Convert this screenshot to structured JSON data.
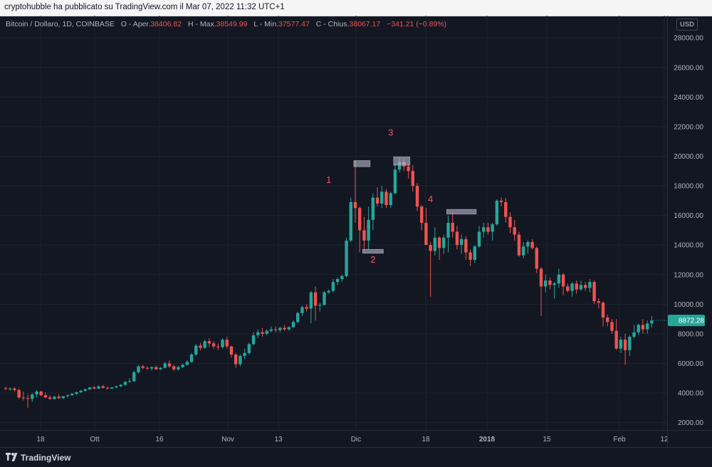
{
  "header": {
    "publisher_line": "cryptohubble ha pubblicato su TradingView.com il Mar 07, 2022 11:32 UTC+1"
  },
  "legend": {
    "symbol": "Bitcoin / Dollaro, 1D, COINBASE",
    "open_label": "O - Aper.",
    "open_value": "38406.82",
    "high_label": "H - Max.",
    "high_value": "38549.99",
    "low_label": "L - Min.",
    "low_value": "37577.47",
    "close_label": "C - Chius.",
    "close_value": "38067.17",
    "change": "−341.21 (−0.89%)"
  },
  "currency_button": "USD",
  "footer": {
    "brand": "TradingView"
  },
  "colors": {
    "up": "#26a69a",
    "down": "#ef5350",
    "background": "#131722",
    "annotation": "#f7525f",
    "price_tag": "#26a69a"
  },
  "chart_data": {
    "type": "candlestick",
    "y_axis": {
      "min": 1500,
      "max": 29500,
      "ticks": [
        "28000.00",
        "26000.00",
        "24000.00",
        "22000.00",
        "20000.00",
        "18000.00",
        "16000.00",
        "14000.00",
        "12000.00",
        "10000.00",
        "8000.00",
        "6000.00",
        "4000.00",
        "2000.00"
      ]
    },
    "x_axis": {
      "tick_labels": [
        "18",
        "Ott",
        "16",
        "Nov",
        "13",
        "Dic",
        "18",
        "2018",
        "15",
        "Feb",
        "12"
      ]
    },
    "last_price_label": "8872.28",
    "annotations": [
      "1",
      "2",
      "3",
      "4"
    ],
    "series": [
      {
        "o": 4320,
        "h": 4430,
        "l": 4200,
        "c": 4280
      },
      {
        "o": 4280,
        "h": 4380,
        "l": 4150,
        "c": 4300
      },
      {
        "o": 4300,
        "h": 4400,
        "l": 4100,
        "c": 4200
      },
      {
        "o": 4200,
        "h": 4300,
        "l": 3600,
        "c": 3700
      },
      {
        "o": 3700,
        "h": 4100,
        "l": 3500,
        "c": 3650
      },
      {
        "o": 3650,
        "h": 3900,
        "l": 3000,
        "c": 3600
      },
      {
        "o": 3600,
        "h": 4000,
        "l": 3400,
        "c": 3900
      },
      {
        "o": 3900,
        "h": 4200,
        "l": 3700,
        "c": 4100
      },
      {
        "o": 4100,
        "h": 4150,
        "l": 3800,
        "c": 3850
      },
      {
        "o": 3850,
        "h": 4050,
        "l": 3650,
        "c": 3700
      },
      {
        "o": 3700,
        "h": 3850,
        "l": 3550,
        "c": 3600
      },
      {
        "o": 3600,
        "h": 3800,
        "l": 3550,
        "c": 3750
      },
      {
        "o": 3750,
        "h": 3900,
        "l": 3600,
        "c": 3650
      },
      {
        "o": 3650,
        "h": 3800,
        "l": 3600,
        "c": 3780
      },
      {
        "o": 3780,
        "h": 3900,
        "l": 3700,
        "c": 3850
      },
      {
        "o": 3850,
        "h": 4000,
        "l": 3800,
        "c": 3950
      },
      {
        "o": 3950,
        "h": 4100,
        "l": 3850,
        "c": 4050
      },
      {
        "o": 4050,
        "h": 4200,
        "l": 4000,
        "c": 4150
      },
      {
        "o": 4150,
        "h": 4300,
        "l": 4100,
        "c": 4250
      },
      {
        "o": 4250,
        "h": 4400,
        "l": 4200,
        "c": 4380
      },
      {
        "o": 4380,
        "h": 4450,
        "l": 4250,
        "c": 4300
      },
      {
        "o": 4300,
        "h": 4500,
        "l": 4250,
        "c": 4450
      },
      {
        "o": 4450,
        "h": 4550,
        "l": 4300,
        "c": 4350
      },
      {
        "o": 4350,
        "h": 4450,
        "l": 4250,
        "c": 4300
      },
      {
        "o": 4300,
        "h": 4400,
        "l": 4250,
        "c": 4380
      },
      {
        "o": 4380,
        "h": 4500,
        "l": 4300,
        "c": 4450
      },
      {
        "o": 4450,
        "h": 4600,
        "l": 4400,
        "c": 4550
      },
      {
        "o": 4550,
        "h": 4800,
        "l": 4500,
        "c": 4750
      },
      {
        "o": 4750,
        "h": 5000,
        "l": 4700,
        "c": 4800
      },
      {
        "o": 4800,
        "h": 5500,
        "l": 4750,
        "c": 5400
      },
      {
        "o": 5400,
        "h": 5900,
        "l": 5300,
        "c": 5800
      },
      {
        "o": 5800,
        "h": 5900,
        "l": 5600,
        "c": 5700
      },
      {
        "o": 5700,
        "h": 5800,
        "l": 5550,
        "c": 5650
      },
      {
        "o": 5650,
        "h": 5800,
        "l": 5500,
        "c": 5750
      },
      {
        "o": 5750,
        "h": 5850,
        "l": 5550,
        "c": 5600
      },
      {
        "o": 5600,
        "h": 5750,
        "l": 5550,
        "c": 5700
      },
      {
        "o": 5700,
        "h": 6100,
        "l": 5650,
        "c": 6000
      },
      {
        "o": 6000,
        "h": 6200,
        "l": 5700,
        "c": 5800
      },
      {
        "o": 5800,
        "h": 5900,
        "l": 5500,
        "c": 5600
      },
      {
        "o": 5600,
        "h": 5850,
        "l": 5500,
        "c": 5750
      },
      {
        "o": 5750,
        "h": 6000,
        "l": 5700,
        "c": 5900
      },
      {
        "o": 5900,
        "h": 6200,
        "l": 5850,
        "c": 6100
      },
      {
        "o": 6100,
        "h": 6700,
        "l": 6050,
        "c": 6600
      },
      {
        "o": 6600,
        "h": 7300,
        "l": 6500,
        "c": 7200
      },
      {
        "o": 7200,
        "h": 7400,
        "l": 6900,
        "c": 7050
      },
      {
        "o": 7050,
        "h": 7600,
        "l": 7000,
        "c": 7500
      },
      {
        "o": 7500,
        "h": 7700,
        "l": 7100,
        "c": 7350
      },
      {
        "o": 7350,
        "h": 7500,
        "l": 7000,
        "c": 7150
      },
      {
        "o": 7150,
        "h": 7350,
        "l": 6900,
        "c": 7100
      },
      {
        "o": 7100,
        "h": 7700,
        "l": 7000,
        "c": 7600
      },
      {
        "o": 7600,
        "h": 7800,
        "l": 7000,
        "c": 7150
      },
      {
        "o": 7150,
        "h": 7200,
        "l": 6400,
        "c": 6600
      },
      {
        "o": 6600,
        "h": 6700,
        "l": 5700,
        "c": 5950
      },
      {
        "o": 5950,
        "h": 6600,
        "l": 5800,
        "c": 6500
      },
      {
        "o": 6500,
        "h": 7000,
        "l": 6300,
        "c": 6700
      },
      {
        "o": 6700,
        "h": 7400,
        "l": 6600,
        "c": 7300
      },
      {
        "o": 7300,
        "h": 8100,
        "l": 7200,
        "c": 7900
      },
      {
        "o": 7900,
        "h": 8300,
        "l": 7700,
        "c": 8100
      },
      {
        "o": 8100,
        "h": 8400,
        "l": 7800,
        "c": 8000
      },
      {
        "o": 8000,
        "h": 8300,
        "l": 7900,
        "c": 8200
      },
      {
        "o": 8200,
        "h": 8500,
        "l": 8100,
        "c": 8300
      },
      {
        "o": 8300,
        "h": 8500,
        "l": 8100,
        "c": 8250
      },
      {
        "o": 8250,
        "h": 8500,
        "l": 8100,
        "c": 8400
      },
      {
        "o": 8400,
        "h": 8600,
        "l": 8200,
        "c": 8300
      },
      {
        "o": 8300,
        "h": 8500,
        "l": 8200,
        "c": 8450
      },
      {
        "o": 8450,
        "h": 8900,
        "l": 8400,
        "c": 8800
      },
      {
        "o": 8800,
        "h": 9500,
        "l": 8700,
        "c": 9400
      },
      {
        "o": 9400,
        "h": 9900,
        "l": 9200,
        "c": 9800
      },
      {
        "o": 9800,
        "h": 10000,
        "l": 9500,
        "c": 9700
      },
      {
        "o": 9700,
        "h": 10900,
        "l": 8700,
        "c": 10800
      },
      {
        "o": 10800,
        "h": 11200,
        "l": 8900,
        "c": 9900
      },
      {
        "o": 9900,
        "h": 10100,
        "l": 9500,
        "c": 9950
      },
      {
        "o": 9950,
        "h": 10900,
        "l": 9900,
        "c": 10800
      },
      {
        "o": 10800,
        "h": 11000,
        "l": 10700,
        "c": 10900
      },
      {
        "o": 10900,
        "h": 11700,
        "l": 10800,
        "c": 11500
      },
      {
        "o": 11500,
        "h": 11800,
        "l": 11300,
        "c": 11700
      },
      {
        "o": 11700,
        "h": 12000,
        "l": 11500,
        "c": 11900
      },
      {
        "o": 11900,
        "h": 14500,
        "l": 11800,
        "c": 14300
      },
      {
        "o": 14300,
        "h": 17200,
        "l": 14200,
        "c": 16900
      },
      {
        "o": 16900,
        "h": 19700,
        "l": 15500,
        "c": 16500
      },
      {
        "o": 16500,
        "h": 16600,
        "l": 13500,
        "c": 15000
      },
      {
        "o": 15000,
        "h": 15900,
        "l": 13600,
        "c": 14300
      },
      {
        "o": 14300,
        "h": 16600,
        "l": 13700,
        "c": 15700
      },
      {
        "o": 15700,
        "h": 17500,
        "l": 15000,
        "c": 17200
      },
      {
        "o": 17200,
        "h": 17900,
        "l": 16600,
        "c": 16800
      },
      {
        "o": 16800,
        "h": 18000,
        "l": 16500,
        "c": 17600
      },
      {
        "o": 17600,
        "h": 17800,
        "l": 16500,
        "c": 16700
      },
      {
        "o": 16700,
        "h": 17600,
        "l": 16500,
        "c": 17500
      },
      {
        "o": 17500,
        "h": 19500,
        "l": 17400,
        "c": 19100
      },
      {
        "o": 19100,
        "h": 19900,
        "l": 18900,
        "c": 19600
      },
      {
        "o": 19600,
        "h": 19800,
        "l": 19000,
        "c": 19300
      },
      {
        "o": 19300,
        "h": 19500,
        "l": 18500,
        "c": 19000
      },
      {
        "o": 19000,
        "h": 19400,
        "l": 17600,
        "c": 18000
      },
      {
        "o": 18000,
        "h": 18200,
        "l": 16300,
        "c": 16600
      },
      {
        "o": 16600,
        "h": 16700,
        "l": 15000,
        "c": 15500
      },
      {
        "o": 15500,
        "h": 16500,
        "l": 14000,
        "c": 14000
      },
      {
        "o": 14000,
        "h": 14200,
        "l": 10500,
        "c": 13600
      },
      {
        "o": 13600,
        "h": 15200,
        "l": 13300,
        "c": 14500
      },
      {
        "o": 14500,
        "h": 14600,
        "l": 13000,
        "c": 13800
      },
      {
        "o": 13800,
        "h": 14700,
        "l": 13400,
        "c": 14500
      },
      {
        "o": 14500,
        "h": 16000,
        "l": 13500,
        "c": 15500
      },
      {
        "o": 15500,
        "h": 16200,
        "l": 14500,
        "c": 14900
      },
      {
        "o": 14900,
        "h": 15300,
        "l": 13700,
        "c": 14000
      },
      {
        "o": 14000,
        "h": 14700,
        "l": 13400,
        "c": 14400
      },
      {
        "o": 14400,
        "h": 14600,
        "l": 13000,
        "c": 13500
      },
      {
        "o": 13500,
        "h": 13700,
        "l": 12600,
        "c": 13000
      },
      {
        "o": 13000,
        "h": 14000,
        "l": 12800,
        "c": 13900
      },
      {
        "o": 13900,
        "h": 15300,
        "l": 13800,
        "c": 14900
      },
      {
        "o": 14900,
        "h": 15500,
        "l": 14500,
        "c": 15200
      },
      {
        "o": 15200,
        "h": 15500,
        "l": 14700,
        "c": 14900
      },
      {
        "o": 14900,
        "h": 15500,
        "l": 14300,
        "c": 15400
      },
      {
        "o": 15400,
        "h": 17100,
        "l": 15300,
        "c": 17000
      },
      {
        "o": 17000,
        "h": 17200,
        "l": 16600,
        "c": 16900
      },
      {
        "o": 16900,
        "h": 17200,
        "l": 15500,
        "c": 15900
      },
      {
        "o": 15900,
        "h": 16200,
        "l": 14800,
        "c": 15200
      },
      {
        "o": 15200,
        "h": 15700,
        "l": 14300,
        "c": 14700
      },
      {
        "o": 14700,
        "h": 14900,
        "l": 13200,
        "c": 13300
      },
      {
        "o": 13300,
        "h": 14200,
        "l": 13100,
        "c": 13900
      },
      {
        "o": 13900,
        "h": 14300,
        "l": 13400,
        "c": 14200
      },
      {
        "o": 14200,
        "h": 14400,
        "l": 13700,
        "c": 13800
      },
      {
        "o": 13800,
        "h": 13900,
        "l": 12100,
        "c": 12400
      },
      {
        "o": 12400,
        "h": 12500,
        "l": 9200,
        "c": 11200
      },
      {
        "o": 11200,
        "h": 12000,
        "l": 10800,
        "c": 11600
      },
      {
        "o": 11600,
        "h": 11800,
        "l": 11000,
        "c": 11300
      },
      {
        "o": 11300,
        "h": 11500,
        "l": 10400,
        "c": 11400
      },
      {
        "o": 11400,
        "h": 12400,
        "l": 11100,
        "c": 12000
      },
      {
        "o": 12000,
        "h": 12100,
        "l": 10600,
        "c": 11200
      },
      {
        "o": 11200,
        "h": 11400,
        "l": 10800,
        "c": 10900
      },
      {
        "o": 10900,
        "h": 11500,
        "l": 10500,
        "c": 11400
      },
      {
        "o": 11400,
        "h": 11600,
        "l": 10700,
        "c": 11000
      },
      {
        "o": 11000,
        "h": 11600,
        "l": 10900,
        "c": 11300
      },
      {
        "o": 11300,
        "h": 11500,
        "l": 10900,
        "c": 11100
      },
      {
        "o": 11100,
        "h": 11700,
        "l": 10800,
        "c": 11500
      },
      {
        "o": 11500,
        "h": 11600,
        "l": 10000,
        "c": 10200
      },
      {
        "o": 10200,
        "h": 10400,
        "l": 9700,
        "c": 10100
      },
      {
        "o": 10100,
        "h": 10200,
        "l": 8500,
        "c": 9100
      },
      {
        "o": 9100,
        "h": 9300,
        "l": 8500,
        "c": 8800
      },
      {
        "o": 8800,
        "h": 9000,
        "l": 8000,
        "c": 8200
      },
      {
        "o": 8200,
        "h": 9000,
        "l": 6900,
        "c": 7000
      },
      {
        "o": 7000,
        "h": 7800,
        "l": 6700,
        "c": 7600
      },
      {
        "o": 7600,
        "h": 8000,
        "l": 5900,
        "c": 6900
      },
      {
        "o": 6900,
        "h": 7900,
        "l": 6500,
        "c": 7800
      },
      {
        "o": 7800,
        "h": 8600,
        "l": 7700,
        "c": 8100
      },
      {
        "o": 8100,
        "h": 8700,
        "l": 7900,
        "c": 8600
      },
      {
        "o": 8600,
        "h": 9000,
        "l": 8000,
        "c": 8300
      },
      {
        "o": 8300,
        "h": 8900,
        "l": 8000,
        "c": 8700
      },
      {
        "o": 8700,
        "h": 9200,
        "l": 8400,
        "c": 8900
      }
    ],
    "boxes": [
      {
        "price_low": 19300,
        "price_high": 19700,
        "candle_start": 79,
        "candle_end": 82
      },
      {
        "price_low": 13450,
        "price_high": 13700,
        "candle_start": 81,
        "candle_end": 85
      },
      {
        "price_low": 19400,
        "price_high": 19950,
        "candle_start": 88,
        "candle_end": 91
      },
      {
        "price_low": 16100,
        "price_high": 16400,
        "candle_start": 100,
        "candle_end": 106
      }
    ],
    "annotation_positions": [
      {
        "label": "1",
        "price": 18200,
        "candle": 73
      },
      {
        "label": "2",
        "price": 12800,
        "candle": 83
      },
      {
        "label": "3",
        "price": 21400,
        "candle": 87
      },
      {
        "label": "4",
        "price": 16900,
        "candle": 96
      }
    ]
  }
}
